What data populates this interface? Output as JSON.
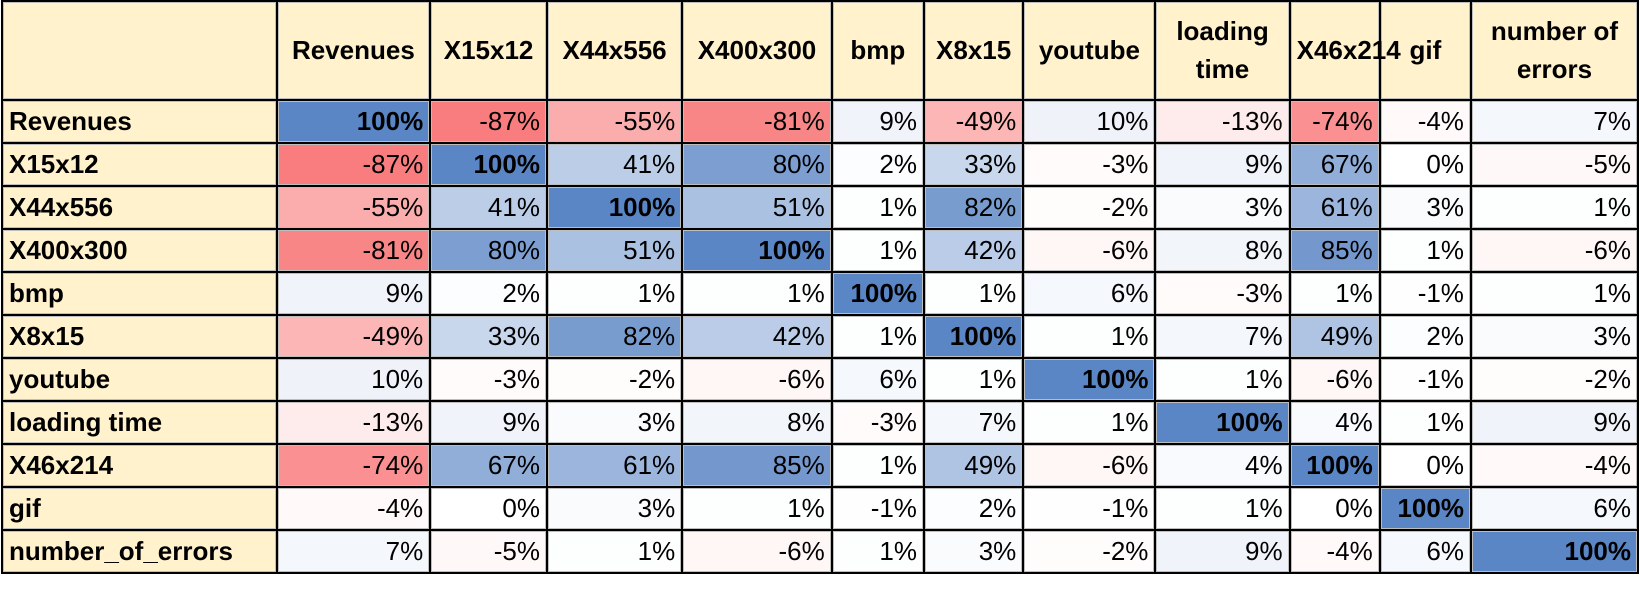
{
  "chart_data": {
    "type": "heatmap",
    "title": "",
    "columns": [
      "Revenues",
      "X15x12",
      "X44x556",
      "X400x300",
      "bmp",
      "X8x15",
      "youtube",
      "loading time",
      "X46x214",
      "gif",
      "number of errors"
    ],
    "rows": [
      "Revenues",
      "X15x12",
      "X44x556",
      "X400x300",
      " bmp",
      "X8x15",
      "youtube",
      "loading time",
      "X46x214",
      " gif",
      "number_of_errors"
    ],
    "values": [
      [
        100,
        -87,
        -55,
        -81,
        9,
        -49,
        10,
        -13,
        -74,
        -4,
        7
      ],
      [
        -87,
        100,
        41,
        80,
        2,
        33,
        -3,
        9,
        67,
        0,
        -5
      ],
      [
        -55,
        41,
        100,
        51,
        1,
        82,
        -2,
        3,
        61,
        3,
        1
      ],
      [
        -81,
        80,
        51,
        100,
        1,
        42,
        -6,
        8,
        85,
        1,
        -6
      ],
      [
        9,
        2,
        1,
        1,
        100,
        1,
        6,
        -3,
        1,
        -1,
        1
      ],
      [
        -49,
        33,
        82,
        42,
        1,
        100,
        1,
        7,
        49,
        2,
        3
      ],
      [
        10,
        -3,
        -2,
        -6,
        6,
        1,
        100,
        1,
        -6,
        -1,
        -2
      ],
      [
        -13,
        9,
        3,
        8,
        -3,
        7,
        1,
        100,
        4,
        1,
        9
      ],
      [
        -74,
        67,
        61,
        85,
        1,
        49,
        -6,
        4,
        100,
        0,
        -4
      ],
      [
        -4,
        0,
        3,
        1,
        -1,
        2,
        -1,
        1,
        0,
        100,
        6
      ],
      [
        7,
        -5,
        1,
        -6,
        1,
        3,
        -2,
        9,
        -4,
        6,
        100
      ]
    ],
    "value_suffix": "%",
    "colors": {
      "positive": "#5b86c5",
      "negative": "#f8696b",
      "neutral": "#ffffff",
      "header_background": "#fff2cc"
    }
  }
}
